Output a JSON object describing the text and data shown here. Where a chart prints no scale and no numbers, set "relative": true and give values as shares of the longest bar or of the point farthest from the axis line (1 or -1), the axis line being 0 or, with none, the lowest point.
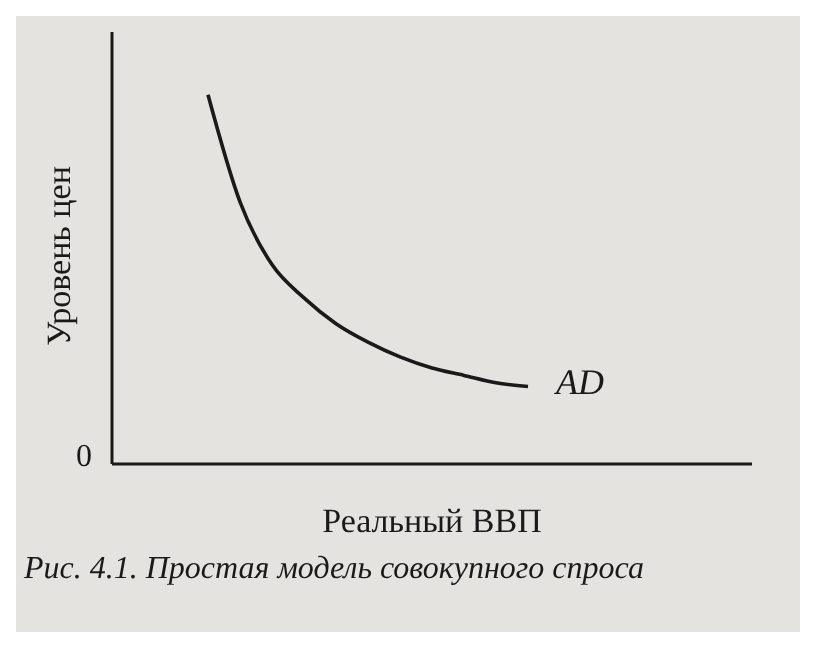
{
  "chart_data": {
    "type": "line",
    "relative": true,
    "xlabel": "Реальный ВВП",
    "ylabel": "Уровень цен",
    "annotations": [
      "0",
      "Рис. 4.1. Простая модель совокупного спроса"
    ],
    "categories": [
      null,
      null,
      null,
      null,
      null,
      null,
      null,
      null,
      null,
      null,
      null,
      null,
      null,
      null,
      null,
      null,
      null,
      null,
      null,
      null,
      null
    ],
    "series": [
      {
        "name": "AD",
        "color": "#1a1a1a",
        "values": [
          null,
          null,
          null,
          1,
          0.71,
          0.54,
          0.45,
          0.38,
          0.33,
          0.29,
          0.26,
          0.24,
          0.22,
          0.21,
          null,
          null,
          null,
          null,
          null,
          null,
          null
        ]
      }
    ],
    "marker": "none",
    "line_style": "solid"
  }
}
